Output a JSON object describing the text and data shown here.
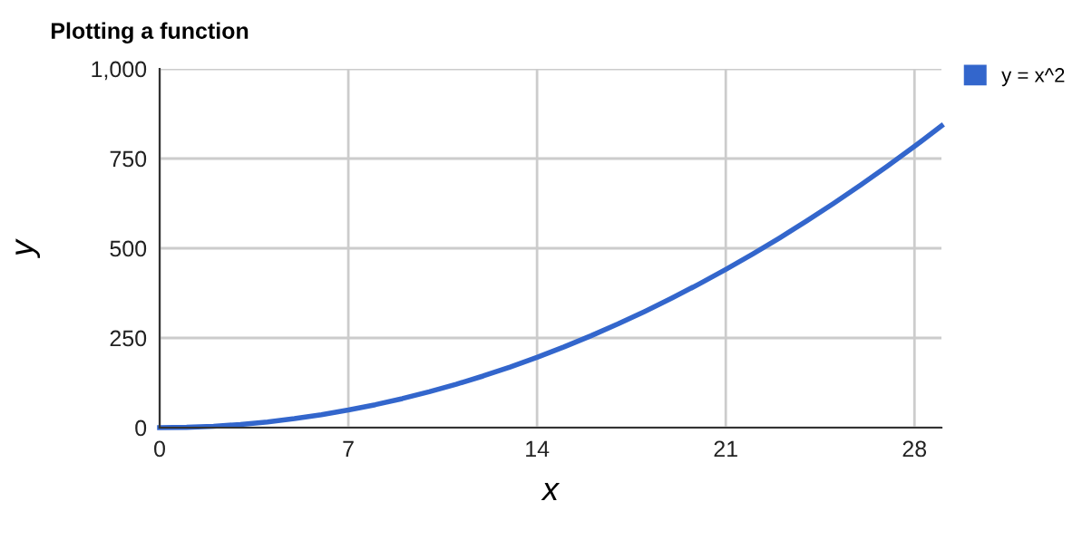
{
  "chart_data": {
    "type": "line",
    "title": "Plotting a function",
    "xlabel": "x",
    "ylabel": "y",
    "x": [
      0,
      1,
      2,
      3,
      4,
      5,
      6,
      7,
      8,
      9,
      10,
      11,
      12,
      13,
      14,
      15,
      16,
      17,
      18,
      19,
      20,
      21,
      22,
      23,
      24,
      25,
      26,
      27,
      28,
      29
    ],
    "series": [
      {
        "name": "y = x^2",
        "color": "#3366cc",
        "values": [
          0,
          1,
          4,
          9,
          16,
          25,
          36,
          49,
          64,
          81,
          100,
          121,
          144,
          169,
          196,
          225,
          256,
          289,
          324,
          361,
          400,
          441,
          484,
          529,
          576,
          625,
          676,
          729,
          784,
          841
        ]
      }
    ],
    "xlim": [
      0,
      29
    ],
    "ylim": [
      0,
      1000
    ],
    "xticks": [
      0,
      7,
      14,
      21,
      28
    ],
    "yticks": [
      0,
      {
        "value": 250,
        "label": "250"
      },
      {
        "value": 500,
        "label": "500"
      },
      {
        "value": 750,
        "label": "750"
      },
      {
        "value": 1000,
        "label": "1,000"
      }
    ],
    "grid": true,
    "legend": "top right"
  }
}
